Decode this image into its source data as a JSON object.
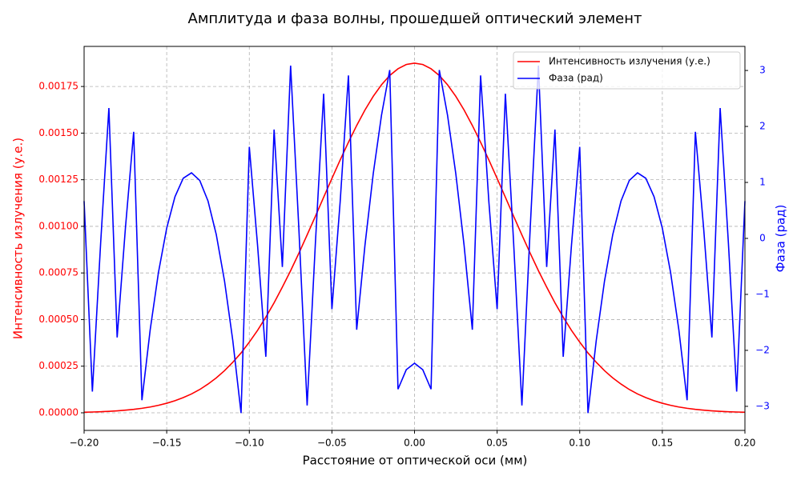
{
  "chart_data": {
    "type": "line",
    "title": "Амплитуда и фаза волны, прошедшей оптический элемент",
    "xlabel": "Расстояние от оптической оси (мм)",
    "ylabel": "Интенсивность излучения (у.е.)",
    "y2label": "Фаза (рад)",
    "x": [
      -0.2,
      -0.195,
      -0.19,
      -0.185,
      -0.18,
      -0.175,
      -0.17,
      -0.165,
      -0.16,
      -0.155,
      -0.15,
      -0.145,
      -0.14,
      -0.135,
      -0.13,
      -0.125,
      -0.12,
      -0.115,
      -0.11,
      -0.105,
      -0.1,
      -0.095,
      -0.09,
      -0.085,
      -0.08,
      -0.075,
      -0.07,
      -0.065,
      -0.06,
      -0.055,
      -0.05,
      -0.045,
      -0.04,
      -0.035,
      -0.03,
      -0.025,
      -0.02,
      -0.015,
      -0.01,
      -0.005,
      0,
      0.005,
      0.01,
      0.015,
      0.02,
      0.025,
      0.03,
      0.035,
      0.04,
      0.045,
      0.05,
      0.055,
      0.06,
      0.065,
      0.07,
      0.075,
      0.08,
      0.085,
      0.09,
      0.095,
      0.1,
      0.105,
      0.11,
      0.115,
      0.12,
      0.125,
      0.13,
      0.135,
      0.14,
      0.145,
      0.15,
      0.155,
      0.16,
      0.165,
      0.17,
      0.175,
      0.18,
      0.185,
      0.19,
      0.195,
      0.2
    ],
    "series": [
      {
        "name": "Интенсивность излучения (у.е.)",
        "color": "#ff0000",
        "axis": "y",
        "values": [
          3.1e-06,
          4.3e-06,
          5.8e-06,
          7.8e-06,
          1.05e-05,
          1.4e-05,
          1.84e-05,
          2.41e-05,
          3.12e-05,
          4.01e-05,
          5.12e-05,
          6.49e-05,
          8.14e-05,
          0.000101,
          0.000125,
          0.000154,
          0.000187,
          0.000226,
          0.000271,
          0.000321,
          0.000379,
          0.000442,
          0.000513,
          0.00059,
          0.000674,
          0.000762,
          0.000856,
          0.000954,
          0.001054,
          0.001156,
          0.001257,
          0.001356,
          0.001451,
          0.001541,
          0.001624,
          0.001697,
          0.001759,
          0.001809,
          0.001845,
          0.001868,
          0.001875,
          0.001868,
          0.001845,
          0.001809,
          0.001759,
          0.001697,
          0.001624,
          0.001541,
          0.001451,
          0.001356,
          0.001257,
          0.001156,
          0.001054,
          0.000954,
          0.000856,
          0.000762,
          0.000674,
          0.00059,
          0.000513,
          0.000442,
          0.000379,
          0.000321,
          0.000271,
          0.000226,
          0.000187,
          0.000154,
          0.000125,
          0.000101,
          8.14e-05,
          6.49e-05,
          5.12e-05,
          4.01e-05,
          3.12e-05,
          2.41e-05,
          1.84e-05,
          1.4e-05,
          1.05e-05,
          7.8e-06,
          5.8e-06,
          4.3e-06,
          3.1e-06
        ]
      },
      {
        "name": "Фаза (рад)",
        "color": "#0000ff",
        "axis": "y2",
        "values": [
          0.666,
          -2.737,
          -0.088,
          2.329,
          -1.77,
          0.183,
          1.904,
          -2.89,
          -1.633,
          -0.609,
          0.184,
          0.745,
          1.074,
          1.171,
          1.035,
          0.668,
          0.069,
          -0.762,
          -1.825,
          -3.12,
          1.635,
          -0.124,
          -2.115,
          1.945,
          -0.51,
          3.086,
          0.167,
          -2.984,
          -0.084,
          2.584,
          -1.264,
          0.657,
          2.912,
          -1.631,
          -0.123,
          1.153,
          2.197,
          3.009,
          -2.694,
          -2.346,
          -2.23,
          -2.346,
          -2.694,
          3.009,
          2.197,
          1.153,
          -0.123,
          -1.631,
          2.912,
          0.657,
          -1.264,
          2.584,
          -0.084,
          -2.984,
          0.167,
          3.086,
          -0.51,
          1.945,
          -2.115,
          -0.124,
          1.635,
          -3.12,
          -1.825,
          -0.762,
          0.069,
          0.668,
          1.035,
          1.171,
          1.074,
          0.745,
          0.184,
          -0.609,
          -1.633,
          -2.89,
          1.904,
          0.183,
          -1.77,
          2.329,
          -0.088,
          -2.737,
          0.666
        ]
      }
    ],
    "xlim": [
      -0.2,
      0.2
    ],
    "xticks": [
      {
        "value": -0.2,
        "label": "−0.20"
      },
      {
        "value": -0.15,
        "label": "−0.15"
      },
      {
        "value": -0.1,
        "label": "−0.10"
      },
      {
        "value": -0.05,
        "label": "−0.05"
      },
      {
        "value": 0,
        "label": "0.00"
      },
      {
        "value": 0.05,
        "label": "0.05"
      },
      {
        "value": 0.1,
        "label": "0.10"
      },
      {
        "value": 0.15,
        "label": "0.15"
      },
      {
        "value": 0.2,
        "label": "0.20"
      }
    ],
    "ylim": [
      -9.44e-05,
      0.001965
    ],
    "yticks": [
      {
        "value": 0,
        "label": "0.00000"
      },
      {
        "value": 0.00025,
        "label": "0.00025"
      },
      {
        "value": 0.0005,
        "label": "0.00050"
      },
      {
        "value": 0.00075,
        "label": "0.00075"
      },
      {
        "value": 0.001,
        "label": "0.00100"
      },
      {
        "value": 0.00125,
        "label": "0.00125"
      },
      {
        "value": 0.0015,
        "label": "0.00150"
      },
      {
        "value": 0.00175,
        "label": "0.00175"
      }
    ],
    "y2lim": [
      -3.43,
      3.43
    ],
    "y2ticks": [
      {
        "value": -3,
        "label": "−3"
      },
      {
        "value": -2,
        "label": "−2"
      },
      {
        "value": -1,
        "label": "−1"
      },
      0,
      1,
      2,
      3
    ],
    "grid": true,
    "legend": "upper right"
  }
}
